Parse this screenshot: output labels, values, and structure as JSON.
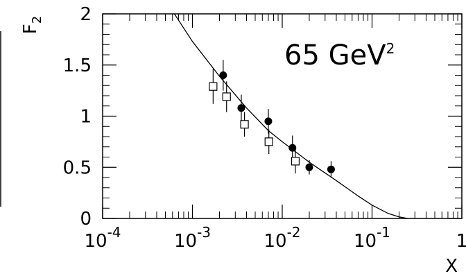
{
  "chart_data": {
    "type": "scatter",
    "annotation": {
      "text": "65 GeV",
      "sup": "2"
    },
    "xlabel": "X",
    "ylabel": {
      "main": "F",
      "sub": "2"
    },
    "x_scale": "log",
    "xlim": [
      0.0001,
      1
    ],
    "ylim": [
      0,
      2
    ],
    "grid": false,
    "x_ticks": [
      {
        "value": 0.0001,
        "base": "10",
        "exp": "-4"
      },
      {
        "value": 0.001,
        "base": "10",
        "exp": "-3"
      },
      {
        "value": 0.01,
        "base": "10",
        "exp": "-2"
      },
      {
        "value": 0.1,
        "base": "10",
        "exp": "-1"
      },
      {
        "value": 1,
        "base": "1",
        "exp": ""
      }
    ],
    "y_ticks": [
      {
        "value": 0,
        "label": "0"
      },
      {
        "value": 0.5,
        "label": "0.5"
      },
      {
        "value": 1,
        "label": "1"
      },
      {
        "value": 1.5,
        "label": "1.5"
      },
      {
        "value": 2,
        "label": "2"
      }
    ],
    "series": [
      {
        "marker": "filled-circle",
        "points": [
          {
            "x": 0.0022,
            "y": 1.4,
            "err": 0.15
          },
          {
            "x": 0.0035,
            "y": 1.08,
            "err": 0.13
          },
          {
            "x": 0.007,
            "y": 0.95,
            "err": 0.12
          },
          {
            "x": 0.013,
            "y": 0.69,
            "err": 0.12
          },
          {
            "x": 0.02,
            "y": 0.5,
            "err": 0.07
          },
          {
            "x": 0.035,
            "y": 0.48,
            "err": 0.08
          }
        ]
      },
      {
        "marker": "open-square",
        "points": [
          {
            "x": 0.0017,
            "y": 1.29,
            "err": 0.17
          },
          {
            "x": 0.0024,
            "y": 1.19,
            "err": 0.15
          },
          {
            "x": 0.0038,
            "y": 0.92,
            "err": 0.12
          },
          {
            "x": 0.0071,
            "y": 0.75,
            "err": 0.12
          },
          {
            "x": 0.014,
            "y": 0.56,
            "err": 0.12
          }
        ]
      }
    ],
    "curve": {
      "points": [
        {
          "x": 0.00063,
          "y": 2.0
        },
        {
          "x": 0.001,
          "y": 1.73
        },
        {
          "x": 0.002,
          "y": 1.39
        },
        {
          "x": 0.004,
          "y": 1.08
        },
        {
          "x": 0.007,
          "y": 0.86
        },
        {
          "x": 0.01,
          "y": 0.75
        },
        {
          "x": 0.02,
          "y": 0.55
        },
        {
          "x": 0.04,
          "y": 0.37
        },
        {
          "x": 0.07,
          "y": 0.22
        },
        {
          "x": 0.1,
          "y": 0.13
        },
        {
          "x": 0.15,
          "y": 0.05
        },
        {
          "x": 0.2,
          "y": 0.015
        },
        {
          "x": 0.25,
          "y": 0.0
        }
      ]
    }
  }
}
